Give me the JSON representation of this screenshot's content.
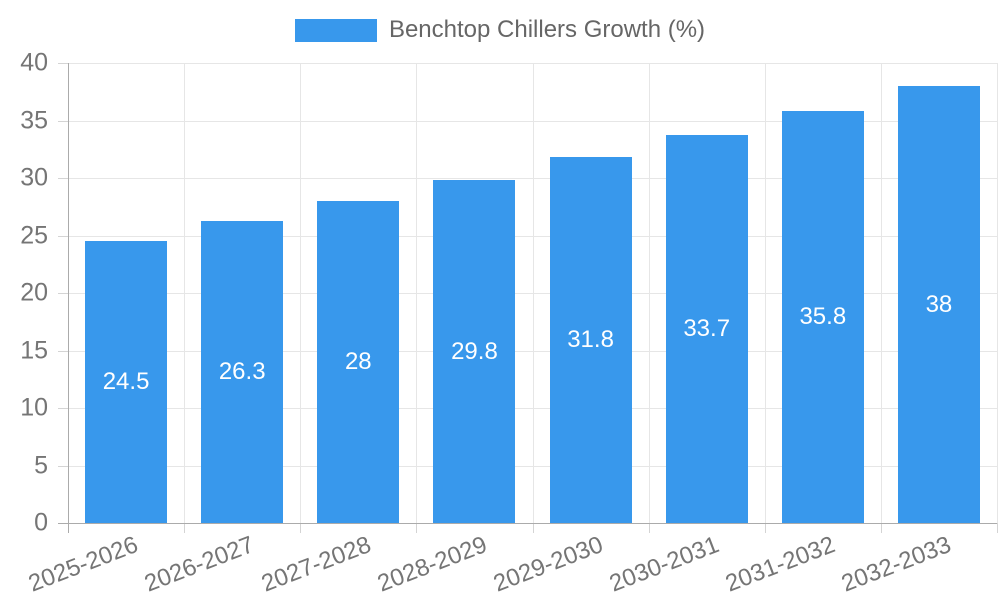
{
  "chart_data": {
    "type": "bar",
    "title": "",
    "legend": {
      "position": "top",
      "label": "Benchtop Chillers Growth (%)"
    },
    "categories": [
      "2025-2026",
      "2026-2027",
      "2027-2028",
      "2028-2029",
      "2029-2030",
      "2030-2031",
      "2031-2032",
      "2032-2033"
    ],
    "values": [
      24.5,
      26.3,
      28,
      29.8,
      31.8,
      33.7,
      35.8,
      38
    ],
    "value_labels": [
      "24.5",
      "26.3",
      "28",
      "29.8",
      "31.8",
      "33.7",
      "35.8",
      "38"
    ],
    "xlabel": "",
    "ylabel": "",
    "ylim": [
      0,
      40
    ],
    "ytick_step": 5,
    "ytick_labels": [
      "0",
      "5",
      "10",
      "15",
      "20",
      "25",
      "30",
      "35",
      "40"
    ],
    "grid": true,
    "colors": {
      "bar": "#3898ec",
      "bar_value_text": "#ffffff",
      "tick_text": "#757575",
      "legend_text": "#666666",
      "gridline": "#e6e6e6",
      "axis_line": "#ababab",
      "background": "#ffffff"
    }
  }
}
